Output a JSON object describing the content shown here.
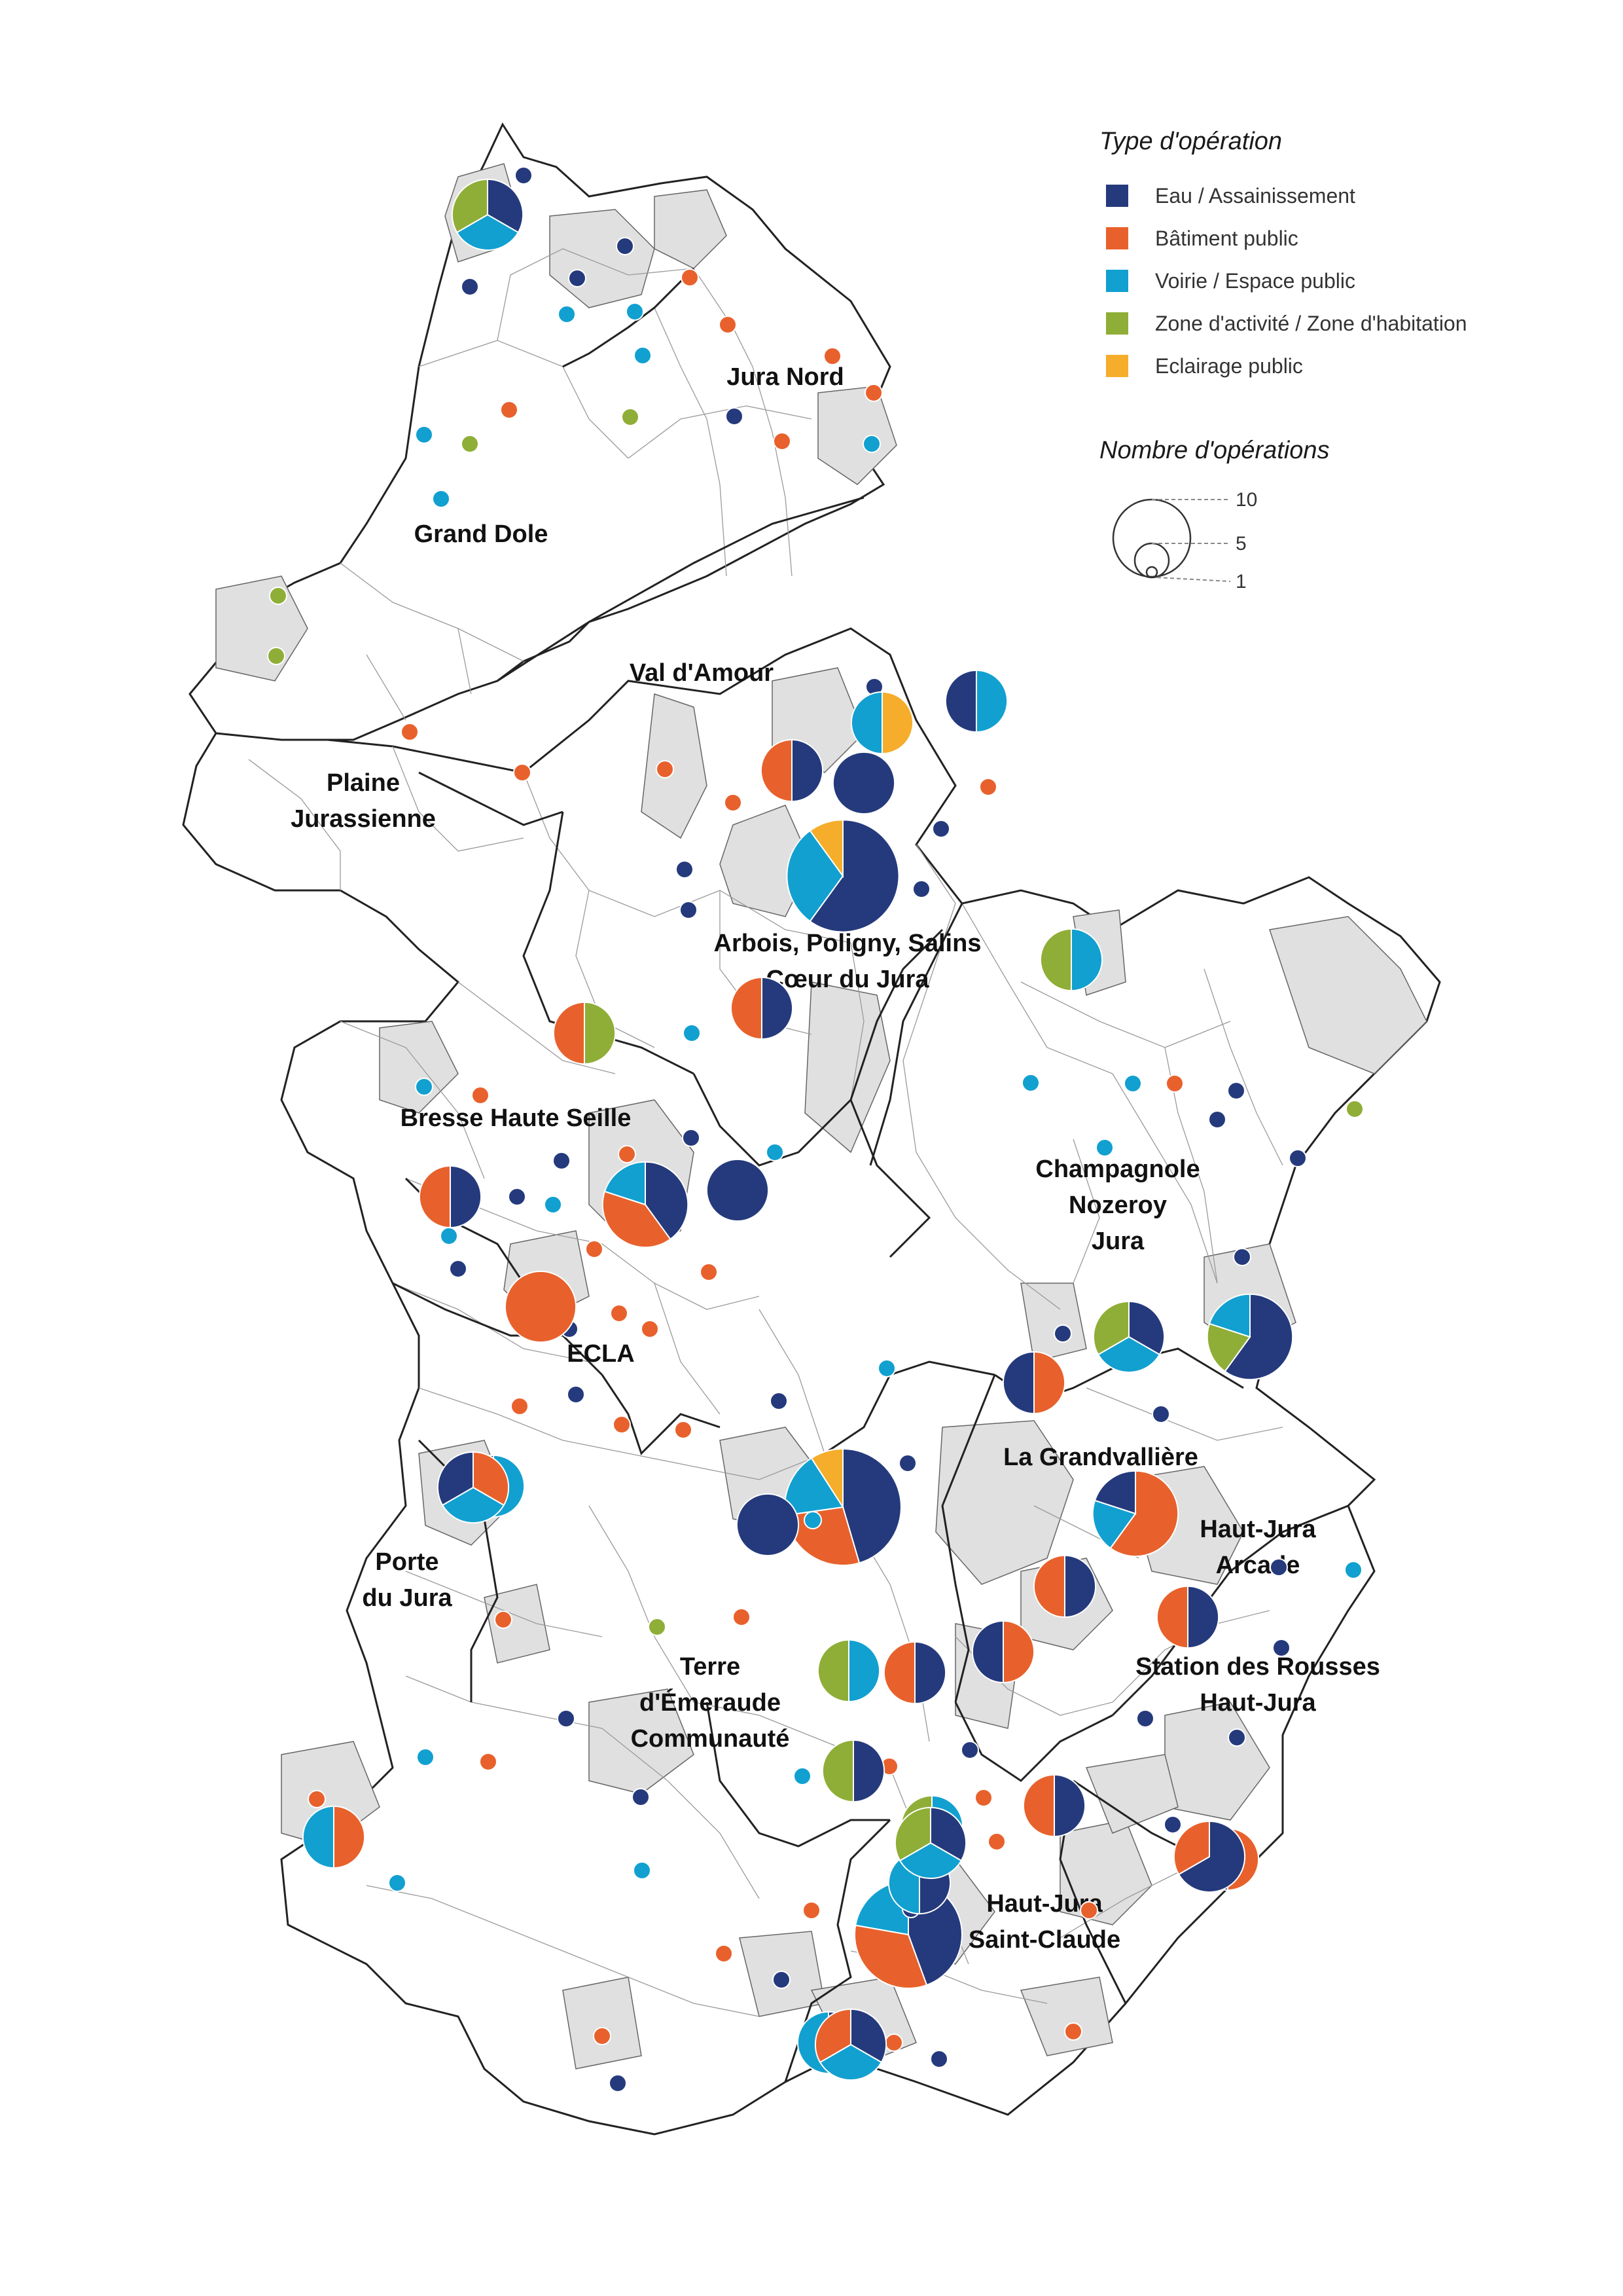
{
  "legend": {
    "type_title": "Type d'opération",
    "types": [
      {
        "key": "eau",
        "label": "Eau / Assainissement",
        "color": "#253a7c"
      },
      {
        "key": "bat",
        "label": "Bâtiment public",
        "color": "#e8612c"
      },
      {
        "key": "voi",
        "label": "Voirie / Espace public",
        "color": "#11a0d0"
      },
      {
        "key": "zon",
        "label": "Zone d'activité / Zone d'habitation",
        "color": "#8fae37"
      },
      {
        "key": "ecl",
        "label": "Eclairage public",
        "color": "#f5ad2b"
      }
    ],
    "size_title": "Nombre d'opérations",
    "sizes": [
      {
        "label": "10",
        "count": 10
      },
      {
        "label": "5",
        "count": 5
      },
      {
        "label": "1",
        "count": 1
      }
    ]
  },
  "regions": [
    {
      "name": "jura-nord",
      "lines": [
        "Jura Nord"
      ]
    },
    {
      "name": "grand-dole",
      "lines": [
        "Grand Dole"
      ]
    },
    {
      "name": "val-d-amour",
      "lines": [
        "Val d'Amour"
      ]
    },
    {
      "name": "plaine-jurassienne",
      "lines": [
        "Plaine",
        "Jurassienne"
      ]
    },
    {
      "name": "arbois-poligny-salins",
      "lines": [
        "Arbois, Poligny, Salins",
        "Cœur du Jura"
      ]
    },
    {
      "name": "bresse-haute-seille",
      "lines": [
        "Bresse Haute Seille"
      ]
    },
    {
      "name": "champagnole-nozeroy",
      "lines": [
        "Champagnole",
        "Nozeroy",
        "Jura"
      ]
    },
    {
      "name": "ecla",
      "lines": [
        "ECLA"
      ]
    },
    {
      "name": "la-grandvalliere",
      "lines": [
        "La Grandvallière"
      ]
    },
    {
      "name": "haut-jura-arcade",
      "lines": [
        "Haut-Jura",
        "Arcade"
      ]
    },
    {
      "name": "porte-du-jura",
      "lines": [
        "Porte",
        "du Jura"
      ]
    },
    {
      "name": "terre-d-emeraude",
      "lines": [
        "Terre",
        "d'Émeraude",
        "Communauté"
      ]
    },
    {
      "name": "station-des-rousses",
      "lines": [
        "Station des Rousses",
        "Haut-Jura"
      ]
    },
    {
      "name": "haut-jura-saint-claude",
      "lines": [
        "Haut-Jura",
        "Saint-Claude"
      ]
    }
  ],
  "symbols": [
    {
      "name": "arbois-hub",
      "ops": {
        "eau": 6,
        "voi": 3,
        "ecl": 1
      }
    },
    {
      "name": "orgelet-hub",
      "ops": {
        "eau": 5,
        "bat": 3,
        "voi": 2,
        "ecl": 1
      }
    },
    {
      "name": "saint-claude-hub",
      "ops": {
        "eau": 4,
        "bat": 3,
        "voi": 2
      }
    },
    {
      "name": "bresse-hub",
      "ops": {
        "eau": 2,
        "bat": 2,
        "voi": 1
      }
    },
    {
      "name": "grandvalliere-hub",
      "ops": {
        "bat": 3,
        "voi": 1,
        "eau": 1
      }
    },
    {
      "name": "nozeroy-hub",
      "ops": {
        "eau": 3,
        "zon": 1,
        "voi": 1
      }
    },
    {
      "name": "dole-north-a",
      "ops": {
        "eau": 1,
        "voi": 1,
        "zon": 1
      }
    },
    {
      "name": "misc-1",
      "ops": {
        "eau": 1
      }
    },
    {
      "name": "misc-2",
      "ops": {
        "bat": 1
      }
    },
    {
      "name": "misc-3",
      "ops": {
        "voi": 1
      }
    },
    {
      "name": "misc-4",
      "ops": {
        "zon": 1
      }
    }
  ]
}
